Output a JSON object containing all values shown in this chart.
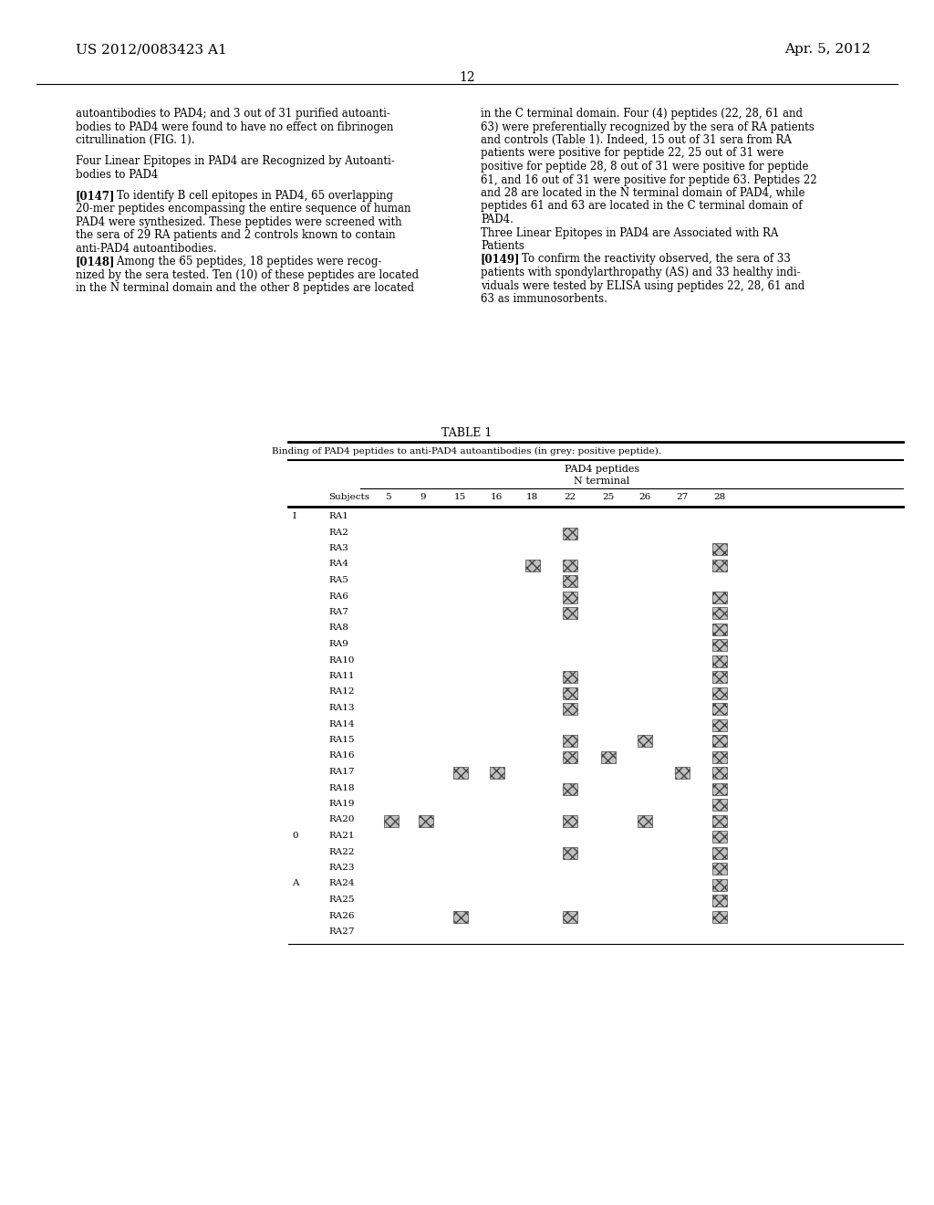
{
  "page_title_left": "US 2012/0083423 A1",
  "page_title_right": "Apr. 5, 2012",
  "page_number": "12",
  "left_column_text": [
    {
      "text": "autoantibodies to PAD4; and 3 out of 31 purified autoanti-",
      "bold_prefix": ""
    },
    {
      "text": "bodies to PAD4 were found to have no effect on fibrinogen",
      "bold_prefix": ""
    },
    {
      "text": "citrullination (FIG. 1).",
      "bold_prefix": ""
    },
    {
      "text": "",
      "bold_prefix": ""
    },
    {
      "text": "Four Linear Epitopes in PAD4 are Recognized by Autoanti-",
      "bold_prefix": ""
    },
    {
      "text": "bodies to PAD4",
      "bold_prefix": ""
    },
    {
      "text": "",
      "bold_prefix": ""
    },
    {
      "text": "[0147]    To identify B cell epitopes in PAD4, 65 overlapping",
      "bold_prefix": "[0147]"
    },
    {
      "text": "20-mer peptides encompassing the entire sequence of human",
      "bold_prefix": ""
    },
    {
      "text": "PAD4 were synthesized. These peptides were screened with",
      "bold_prefix": ""
    },
    {
      "text": "the sera of 29 RA patients and 2 controls known to contain",
      "bold_prefix": ""
    },
    {
      "text": "anti-PAD4 autoantibodies.",
      "bold_prefix": ""
    },
    {
      "text": "[0148]    Among the 65 peptides, 18 peptides were recog-",
      "bold_prefix": "[0148]"
    },
    {
      "text": "nized by the sera tested. Ten (10) of these peptides are located",
      "bold_prefix": ""
    },
    {
      "text": "in the N terminal domain and the other 8 peptides are located",
      "bold_prefix": ""
    }
  ],
  "right_column_text": [
    {
      "text": "in the C terminal domain. Four (4) peptides (22, 28, 61 and",
      "bold_prefix": ""
    },
    {
      "text": "63) were preferentially recognized by the sera of RA patients",
      "bold_prefix": ""
    },
    {
      "text": "and controls (Table 1). Indeed, 15 out of 31 sera from RA",
      "bold_prefix": ""
    },
    {
      "text": "patients were positive for peptide 22, 25 out of 31 were",
      "bold_prefix": ""
    },
    {
      "text": "positive for peptide 28, 8 out of 31 were positive for peptide",
      "bold_prefix": ""
    },
    {
      "text": "61, and 16 out of 31 were positive for peptide 63. Peptides 22",
      "bold_prefix": ""
    },
    {
      "text": "and 28 are located in the N terminal domain of PAD4, while",
      "bold_prefix": ""
    },
    {
      "text": "peptides 61 and 63 are located in the C terminal domain of",
      "bold_prefix": ""
    },
    {
      "text": "PAD4.",
      "bold_prefix": ""
    },
    {
      "text": "Three Linear Epitopes in PAD4 are Associated with RA",
      "bold_prefix": ""
    },
    {
      "text": "Patients",
      "bold_prefix": ""
    },
    {
      "text": "[0149]    To confirm the reactivity observed, the sera of 33",
      "bold_prefix": "[0149]"
    },
    {
      "text": "patients with spondylarthropathy (AS) and 33 healthy indi-",
      "bold_prefix": ""
    },
    {
      "text": "viduals were tested by ELISA using peptides 22, 28, 61 and",
      "bold_prefix": ""
    },
    {
      "text": "63 as immunosorbents.",
      "bold_prefix": ""
    }
  ],
  "table_title": "TABLE 1",
  "table_subtitle": "Binding of PAD4 peptides to anti-PAD4 autoantibodies (in grey: positive peptide).",
  "col_header_main": "PAD4 peptides",
  "col_header_sub": "N terminal",
  "columns": [
    "Subjects",
    "5",
    "9",
    "15",
    "16",
    "18",
    "22",
    "25",
    "26",
    "27",
    "28"
  ],
  "rows": [
    {
      "label": "RA1",
      "group": "I",
      "5": 0,
      "9": 0,
      "15": 0,
      "16": 0,
      "18": 0,
      "22": 0,
      "25": 0,
      "26": 0,
      "27": 0,
      "28": 0
    },
    {
      "label": "RA2",
      "group": "",
      "5": 0,
      "9": 0,
      "15": 0,
      "16": 0,
      "18": 0,
      "22": 1,
      "25": 0,
      "26": 0,
      "27": 0,
      "28": 0
    },
    {
      "label": "RA3",
      "group": "",
      "5": 0,
      "9": 0,
      "15": 0,
      "16": 0,
      "18": 0,
      "22": 0,
      "25": 0,
      "26": 0,
      "27": 0,
      "28": 1
    },
    {
      "label": "RA4",
      "group": "",
      "5": 0,
      "9": 0,
      "15": 0,
      "16": 0,
      "18": 1,
      "22": 1,
      "25": 0,
      "26": 0,
      "27": 0,
      "28": 1
    },
    {
      "label": "RA5",
      "group": "",
      "5": 0,
      "9": 0,
      "15": 0,
      "16": 0,
      "18": 0,
      "22": 1,
      "25": 0,
      "26": 0,
      "27": 0,
      "28": 0
    },
    {
      "label": "RA6",
      "group": "",
      "5": 0,
      "9": 0,
      "15": 0,
      "16": 0,
      "18": 0,
      "22": 1,
      "25": 0,
      "26": 0,
      "27": 0,
      "28": 1
    },
    {
      "label": "RA7",
      "group": "",
      "5": 0,
      "9": 0,
      "15": 0,
      "16": 0,
      "18": 0,
      "22": 1,
      "25": 0,
      "26": 0,
      "27": 0,
      "28": 1
    },
    {
      "label": "RA8",
      "group": "",
      "5": 0,
      "9": 0,
      "15": 0,
      "16": 0,
      "18": 0,
      "22": 0,
      "25": 0,
      "26": 0,
      "27": 0,
      "28": 1
    },
    {
      "label": "RA9",
      "group": "",
      "5": 0,
      "9": 0,
      "15": 0,
      "16": 0,
      "18": 0,
      "22": 0,
      "25": 0,
      "26": 0,
      "27": 0,
      "28": 1
    },
    {
      "label": "RA10",
      "group": "",
      "5": 0,
      "9": 0,
      "15": 0,
      "16": 0,
      "18": 0,
      "22": 0,
      "25": 0,
      "26": 0,
      "27": 0,
      "28": 1
    },
    {
      "label": "RA11",
      "group": "",
      "5": 0,
      "9": 0,
      "15": 0,
      "16": 0,
      "18": 0,
      "22": 1,
      "25": 0,
      "26": 0,
      "27": 0,
      "28": 1
    },
    {
      "label": "RA12",
      "group": "",
      "5": 0,
      "9": 0,
      "15": 0,
      "16": 0,
      "18": 0,
      "22": 1,
      "25": 0,
      "26": 0,
      "27": 0,
      "28": 1
    },
    {
      "label": "RA13",
      "group": "",
      "5": 0,
      "9": 0,
      "15": 0,
      "16": 0,
      "18": 0,
      "22": 1,
      "25": 0,
      "26": 0,
      "27": 0,
      "28": 1
    },
    {
      "label": "RA14",
      "group": "",
      "5": 0,
      "9": 0,
      "15": 0,
      "16": 0,
      "18": 0,
      "22": 0,
      "25": 0,
      "26": 0,
      "27": 0,
      "28": 1
    },
    {
      "label": "RA15",
      "group": "",
      "5": 0,
      "9": 0,
      "15": 0,
      "16": 0,
      "18": 0,
      "22": 1,
      "25": 0,
      "26": 1,
      "27": 0,
      "28": 1
    },
    {
      "label": "RA16",
      "group": "",
      "5": 0,
      "9": 0,
      "15": 0,
      "16": 0,
      "18": 0,
      "22": 1,
      "25": 1,
      "26": 0,
      "27": 0,
      "28": 1
    },
    {
      "label": "RA17",
      "group": "",
      "5": 0,
      "9": 0,
      "15": 1,
      "16": 1,
      "18": 0,
      "22": 0,
      "25": 0,
      "26": 0,
      "27": 1,
      "28": 1
    },
    {
      "label": "RA18",
      "group": "",
      "5": 0,
      "9": 0,
      "15": 0,
      "16": 0,
      "18": 0,
      "22": 1,
      "25": 0,
      "26": 0,
      "27": 0,
      "28": 1
    },
    {
      "label": "RA19",
      "group": "",
      "5": 0,
      "9": 0,
      "15": 0,
      "16": 0,
      "18": 0,
      "22": 0,
      "25": 0,
      "26": 0,
      "27": 0,
      "28": 1
    },
    {
      "label": "RA20",
      "group": "",
      "5": 1,
      "9": 1,
      "15": 0,
      "16": 0,
      "18": 0,
      "22": 1,
      "25": 0,
      "26": 1,
      "27": 0,
      "28": 1
    },
    {
      "label": "RA21",
      "group": "0",
      "5": 0,
      "9": 0,
      "15": 0,
      "16": 0,
      "18": 0,
      "22": 0,
      "25": 0,
      "26": 0,
      "27": 0,
      "28": 1
    },
    {
      "label": "RA22",
      "group": "",
      "5": 0,
      "9": 0,
      "15": 0,
      "16": 0,
      "18": 0,
      "22": 1,
      "25": 0,
      "26": 0,
      "27": 0,
      "28": 1
    },
    {
      "label": "RA23",
      "group": "",
      "5": 0,
      "9": 0,
      "15": 0,
      "16": 0,
      "18": 0,
      "22": 0,
      "25": 0,
      "26": 0,
      "27": 0,
      "28": 1
    },
    {
      "label": "RA24",
      "group": "A",
      "5": 0,
      "9": 0,
      "15": 0,
      "16": 0,
      "18": 0,
      "22": 0,
      "25": 0,
      "26": 0,
      "27": 0,
      "28": 1
    },
    {
      "label": "RA25",
      "group": "",
      "5": 0,
      "9": 0,
      "15": 0,
      "16": 0,
      "18": 0,
      "22": 0,
      "25": 0,
      "26": 0,
      "27": 0,
      "28": 1
    },
    {
      "label": "RA26",
      "group": "",
      "5": 0,
      "9": 0,
      "15": 1,
      "16": 0,
      "18": 0,
      "22": 1,
      "25": 0,
      "26": 0,
      "27": 0,
      "28": 1
    },
    {
      "label": "RA27",
      "group": "",
      "5": 0,
      "9": 0,
      "15": 0,
      "16": 0,
      "18": 0,
      "22": 0,
      "25": 0,
      "26": 0,
      "27": 0,
      "28": 0
    }
  ],
  "bg_color": "#ffffff",
  "text_color": "#000000"
}
